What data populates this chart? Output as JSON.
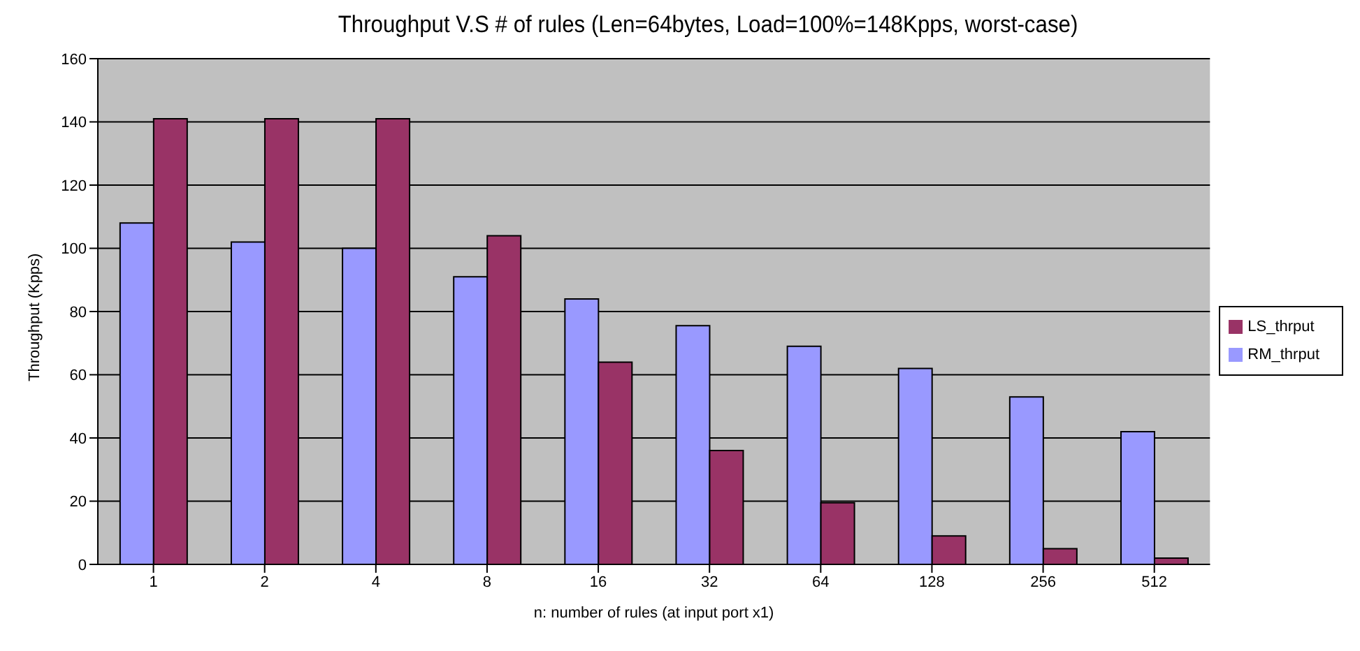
{
  "chart_data": {
    "type": "bar",
    "title": "Throughput V.S # of rules (Len=64bytes, Load=100%=148Kpps, worst-case)",
    "xlabel": "n: number of rules (at input port x1)",
    "ylabel": "Throughput (Kpps)",
    "categories": [
      "1",
      "2",
      "4",
      "8",
      "16",
      "32",
      "64",
      "128",
      "256",
      "512"
    ],
    "series": [
      {
        "name": "RM_thrput",
        "color": "#9999ff",
        "values": [
          108,
          102,
          100,
          91,
          84,
          75.5,
          69,
          62,
          53,
          42
        ]
      },
      {
        "name": "LS_thrput",
        "color": "#993366",
        "values": [
          141,
          141,
          141,
          104,
          64,
          36,
          19.5,
          9,
          5,
          2
        ]
      }
    ],
    "ylim": [
      0,
      160
    ],
    "yticks": [
      0,
      20,
      40,
      60,
      80,
      100,
      120,
      140,
      160
    ],
    "grid": "y",
    "legend": "right"
  }
}
